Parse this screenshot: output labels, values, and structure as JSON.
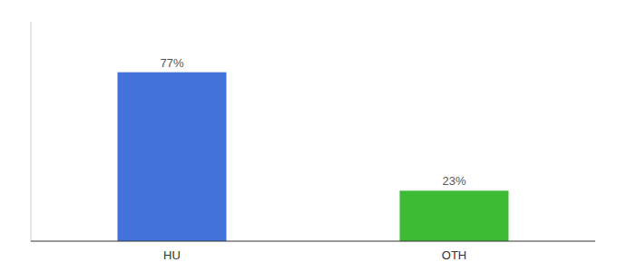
{
  "chart_data": {
    "type": "bar",
    "categories": [
      "HU",
      "OTH"
    ],
    "values": [
      77,
      23
    ],
    "value_labels": [
      "77%",
      "23%"
    ],
    "colors": [
      "#4472db",
      "#3dbb35"
    ],
    "ylim": [
      0,
      100
    ],
    "data_labels": true,
    "tick_labels": "x"
  }
}
